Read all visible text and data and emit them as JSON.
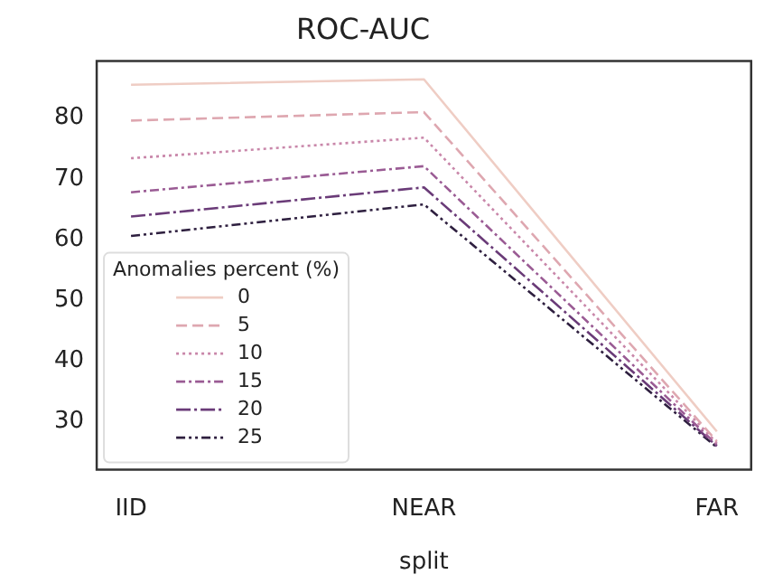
{
  "chart_data": {
    "type": "line",
    "title": "ROC-AUC",
    "xlabel": "split",
    "categories": [
      "IID",
      "NEAR",
      "FAR"
    ],
    "ylim": [
      22.1,
      89.4
    ],
    "yticks": [
      30,
      40,
      50,
      60,
      70,
      80
    ],
    "grid": false,
    "legend": "bottom left",
    "legend_title": "Anomalies percent (%)",
    "marker": "none",
    "series": [
      {
        "name": "0",
        "color": "#efcdc4",
        "line_style": "solid",
        "values": [
          85.5,
          86.4,
          28.4
        ]
      },
      {
        "name": "5",
        "color": "#dea7b0",
        "line_style": "dashed",
        "values": [
          79.6,
          81.0,
          26.8
        ]
      },
      {
        "name": "10",
        "color": "#c987aa",
        "line_style": "dotted",
        "values": [
          73.4,
          76.8,
          26.5
        ]
      },
      {
        "name": "15",
        "color": "#9a5b94",
        "line_style": "dashdot",
        "values": [
          67.8,
          72.1,
          26.2
        ]
      },
      {
        "name": "20",
        "color": "#6a3b78",
        "line_style": "longdashdot",
        "values": [
          63.8,
          68.6,
          26.0
        ]
      },
      {
        "name": "25",
        "color": "#2e1f3f",
        "line_style": "dashdotdot",
        "values": [
          60.6,
          65.8,
          25.8
        ]
      }
    ]
  }
}
